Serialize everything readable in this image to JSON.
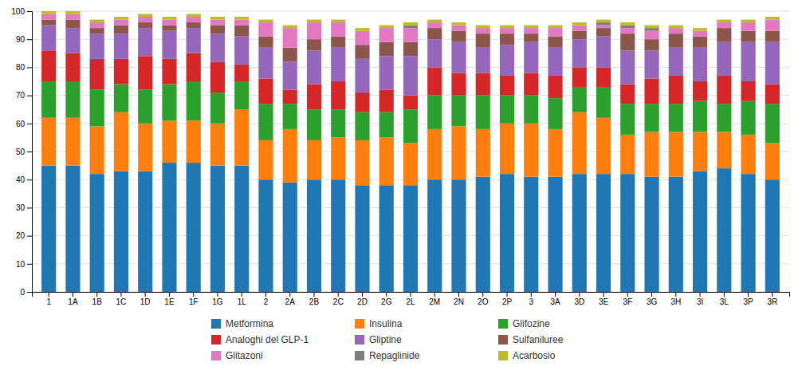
{
  "chart_data": {
    "type": "bar",
    "stacked": true,
    "categories": [
      "1",
      "1A",
      "1B",
      "1C",
      "1D",
      "1E",
      "1F",
      "1G",
      "1L",
      "2",
      "2A",
      "2B",
      "2C",
      "2D",
      "2G",
      "2L",
      "2M",
      "2N",
      "2O",
      "2P",
      "3",
      "3A",
      "3D",
      "3E",
      "3F",
      "3G",
      "3H",
      "3I",
      "3L",
      "3P",
      "3R"
    ],
    "series": [
      {
        "name": "Metformina",
        "values": [
          45,
          45,
          42,
          43,
          43,
          46,
          46,
          45,
          45,
          40,
          39,
          40,
          40,
          38,
          38,
          38,
          40,
          40,
          41,
          42,
          41,
          41,
          42,
          42,
          42,
          41,
          41,
          43,
          44,
          42,
          40
        ]
      },
      {
        "name": "Insulina",
        "values": [
          17,
          17,
          17,
          21,
          17,
          15,
          15,
          15,
          20,
          14,
          19,
          14,
          15,
          16,
          17,
          15,
          18,
          19,
          17,
          18,
          19,
          17,
          22,
          20,
          14,
          16,
          16,
          14,
          13,
          14,
          13
        ]
      },
      {
        "name": "Glifozine",
        "values": [
          13,
          13,
          13,
          10,
          12,
          13,
          14,
          11,
          10,
          13,
          9,
          11,
          10,
          10,
          9,
          12,
          12,
          11,
          12,
          10,
          10,
          11,
          9,
          11,
          11,
          10,
          10,
          11,
          10,
          12,
          14
        ]
      },
      {
        "name": "Analoghi del GLP-1",
        "values": [
          11,
          10,
          11,
          9,
          12,
          9,
          10,
          11,
          6,
          9,
          5,
          9,
          10,
          7,
          8,
          5,
          10,
          8,
          8,
          7,
          8,
          8,
          7,
          7,
          7,
          9,
          10,
          7,
          10,
          7,
          7
        ]
      },
      {
        "name": "Gliptine",
        "values": [
          9,
          9,
          9,
          9,
          10,
          10,
          9,
          10,
          10,
          11,
          10,
          12,
          12,
          12,
          12,
          14,
          10,
          11,
          9,
          11,
          11,
          10,
          10,
          11,
          12,
          10,
          10,
          12,
          12,
          14,
          15
        ]
      },
      {
        "name": "Sulfaniluree",
        "values": [
          2,
          3,
          2,
          3,
          2,
          2,
          2,
          3,
          4,
          4,
          5,
          4,
          4,
          5,
          5,
          5,
          4,
          4,
          5,
          4,
          3,
          4,
          3,
          3,
          6,
          4,
          5,
          4,
          5,
          4,
          4
        ]
      },
      {
        "name": "Glitazoni",
        "values": [
          2,
          2,
          2,
          2,
          2,
          2,
          2,
          2,
          2,
          5,
          7,
          6,
          5,
          5,
          5,
          5,
          2,
          2,
          2,
          2,
          2,
          3,
          2,
          1,
          2,
          3,
          2,
          2,
          2,
          3,
          4
        ]
      },
      {
        "name": "Repaglinide",
        "values": [
          0,
          0,
          0,
          0,
          0,
          0,
          0,
          0,
          0,
          0,
          0,
          0,
          0,
          0,
          0,
          1,
          0,
          0,
          0,
          0,
          0,
          0,
          0,
          1,
          1,
          1,
          0,
          0,
          0,
          0,
          0
        ]
      },
      {
        "name": "Acarbosio",
        "values": [
          1,
          1,
          1,
          1,
          1,
          1,
          1,
          1,
          1,
          1,
          1,
          1,
          1,
          1,
          1,
          1,
          1,
          1,
          1,
          1,
          1,
          1,
          1,
          1,
          1,
          1,
          1,
          1,
          1,
          1,
          1
        ]
      }
    ],
    "ylim": [
      0,
      100
    ],
    "yticks": [
      0,
      10,
      20,
      30,
      40,
      50,
      60,
      70,
      80,
      90,
      100
    ],
    "grid": true,
    "legend": "bottom"
  }
}
